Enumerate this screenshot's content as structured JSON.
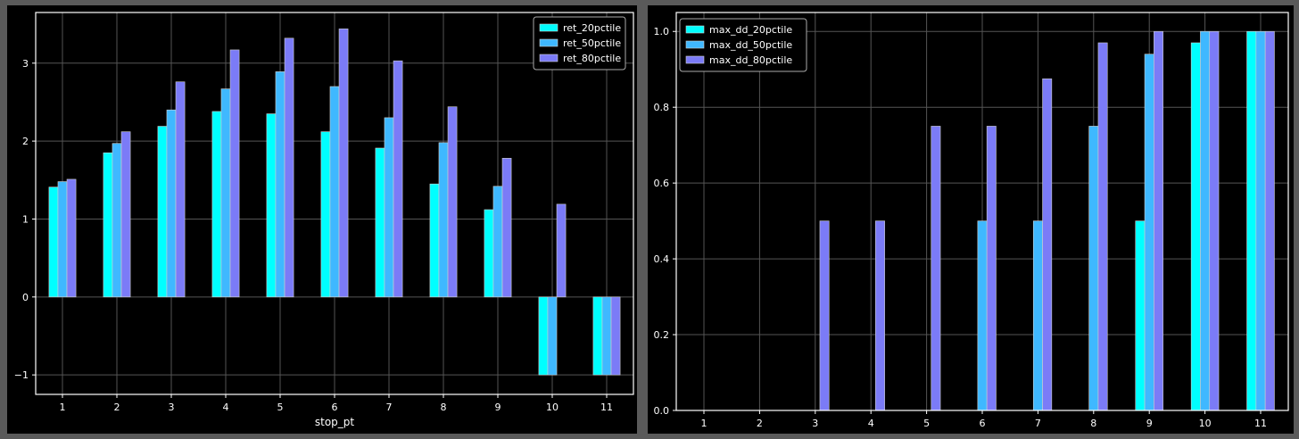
{
  "chart_data": [
    {
      "type": "bar",
      "title": "",
      "xlabel": "stop_pt",
      "ylabel": "",
      "categories": [
        "1",
        "2",
        "3",
        "4",
        "5",
        "6",
        "7",
        "8",
        "9",
        "10",
        "11"
      ],
      "ylim": [
        -1.25,
        3.65
      ],
      "yticks": [
        -1,
        0,
        1,
        2,
        3
      ],
      "yticklabels": [
        "−1",
        "0",
        "1",
        "2",
        "3"
      ],
      "grid": true,
      "legend_position": "top-right",
      "series": [
        {
          "name": "ret_20pctile",
          "color": "#00ffff",
          "values": [
            1.41,
            1.85,
            2.19,
            2.38,
            2.35,
            2.12,
            1.91,
            1.45,
            1.12,
            -1.0,
            -1.0
          ]
        },
        {
          "name": "ret_50pctile",
          "color": "#3fb8ff",
          "values": [
            1.48,
            1.97,
            2.4,
            2.67,
            2.89,
            2.7,
            2.3,
            1.98,
            1.42,
            -1.0,
            -1.0
          ]
        },
        {
          "name": "ret_80pctile",
          "color": "#7b7bf7",
          "values": [
            1.51,
            2.12,
            2.76,
            3.17,
            3.32,
            3.44,
            3.03,
            2.44,
            1.78,
            1.19,
            -1.0
          ]
        }
      ]
    },
    {
      "type": "bar",
      "title": "",
      "xlabel": "",
      "ylabel": "",
      "categories": [
        "1",
        "2",
        "3",
        "4",
        "5",
        "6",
        "7",
        "8",
        "9",
        "10",
        "11"
      ],
      "ylim": [
        0,
        1.05
      ],
      "yticks": [
        0,
        0.2,
        0.4,
        0.6,
        0.8,
        1.0
      ],
      "yticklabels": [
        "0.0",
        "0.2",
        "0.4",
        "0.6",
        "0.8",
        "1.0"
      ],
      "grid": true,
      "legend_position": "top-left",
      "series": [
        {
          "name": "max_dd_20pctile",
          "color": "#00ffff",
          "values": [
            0,
            0,
            0,
            0,
            0,
            0,
            0,
            0,
            0.5,
            0.97,
            1.0
          ]
        },
        {
          "name": "max_dd_50pctile",
          "color": "#3fb8ff",
          "values": [
            0,
            0,
            0,
            0,
            0,
            0.5,
            0.5,
            0.75,
            0.94,
            1.0,
            1.0
          ]
        },
        {
          "name": "max_dd_80pctile",
          "color": "#7b7bf7",
          "values": [
            0,
            0,
            0.5,
            0.5,
            0.75,
            0.75,
            0.875,
            0.97,
            1.0,
            1.0,
            1.0
          ]
        }
      ]
    }
  ]
}
